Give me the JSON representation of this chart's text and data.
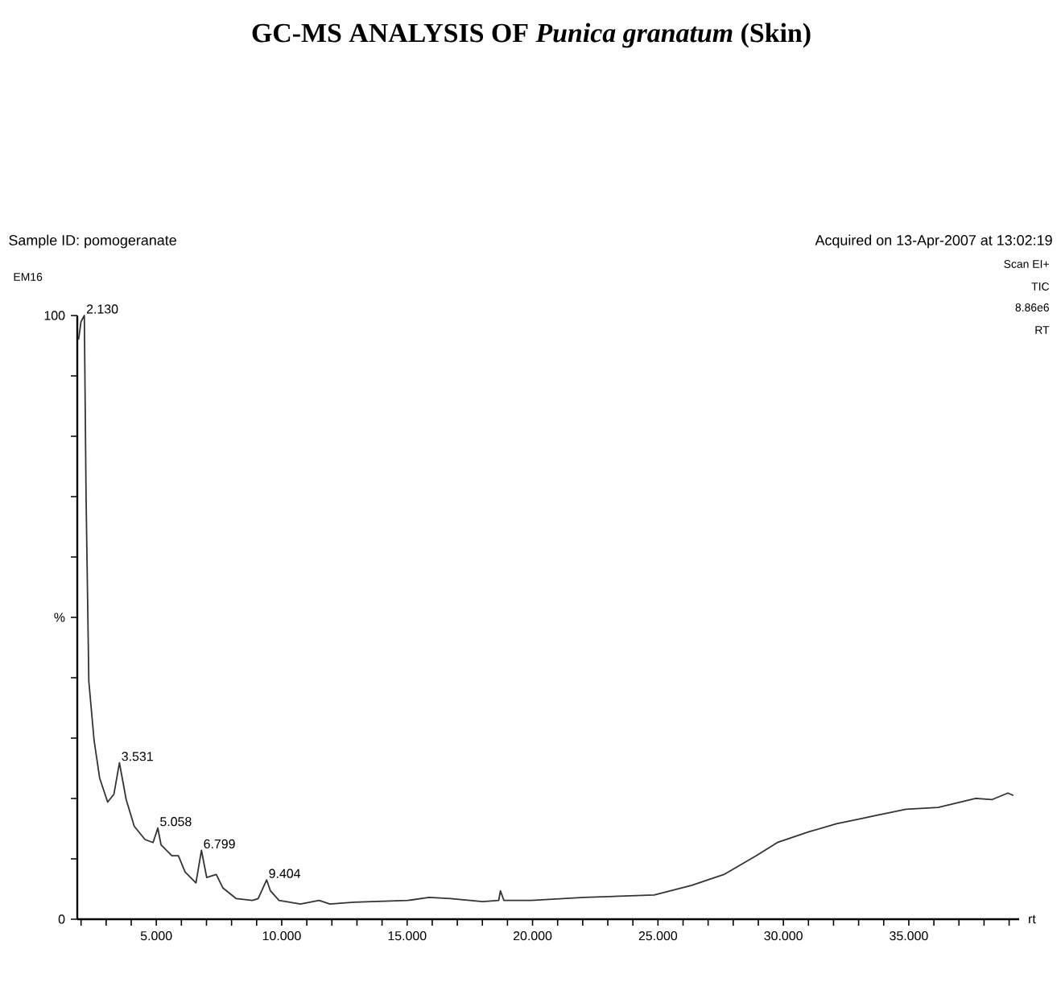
{
  "chart_data": {
    "type": "line",
    "title": "GC-MS ANALYSIS OF *Punica granatum* (Skin)",
    "xlabel": "rt",
    "annotations": [
      "Sample ID: pomogeranate",
      "Acquired on 13-Apr-2007 at 13:02:19",
      "EM16",
      "Scan EI+",
      "TIC",
      "8.86e6",
      "RT",
      {
        "text": "2.130",
        "x": 2.13,
        "y": 100
      },
      {
        "text": "3.531",
        "x": 3.53,
        "y": 25.9
      },
      {
        "text": "5.058",
        "x": 5.06,
        "y": 15.1
      },
      {
        "text": "6.799",
        "x": 6.8,
        "y": 11.4
      },
      {
        "text": "9.404",
        "x": 9.4,
        "y": 6.5
      }
    ],
    "xlim": [
      1.85,
      39.4
    ],
    "ylim": [
      0,
      100
    ],
    "xticks": [
      {
        "value": 2,
        "label": null
      },
      {
        "value": 3,
        "label": null
      },
      {
        "value": 4,
        "label": null
      },
      {
        "value": 5,
        "label": "5.000"
      },
      {
        "value": 6,
        "label": null
      },
      {
        "value": 7,
        "label": null
      },
      {
        "value": 8,
        "label": null
      },
      {
        "value": 9,
        "label": null
      },
      {
        "value": 10,
        "label": "10.000"
      },
      {
        "value": 11,
        "label": null
      },
      {
        "value": 12,
        "label": null
      },
      {
        "value": 13,
        "label": null
      },
      {
        "value": 14,
        "label": null
      },
      {
        "value": 15,
        "label": "15.000"
      },
      {
        "value": 16,
        "label": null
      },
      {
        "value": 17,
        "label": null
      },
      {
        "value": 18,
        "label": null
      },
      {
        "value": 19,
        "label": null
      },
      {
        "value": 20,
        "label": "20.000"
      },
      {
        "value": 21,
        "label": null
      },
      {
        "value": 22,
        "label": null
      },
      {
        "value": 23,
        "label": null
      },
      {
        "value": 24,
        "label": null
      },
      {
        "value": 25,
        "label": "25.000"
      },
      {
        "value": 26,
        "label": null
      },
      {
        "value": 27,
        "label": null
      },
      {
        "value": 28,
        "label": null
      },
      {
        "value": 29,
        "label": null
      },
      {
        "value": 30,
        "label": "30.000"
      },
      {
        "value": 31,
        "label": null
      },
      {
        "value": 32,
        "label": null
      },
      {
        "value": 33,
        "label": null
      },
      {
        "value": 34,
        "label": null
      },
      {
        "value": 35,
        "label": "35.000"
      },
      {
        "value": 36,
        "label": null
      },
      {
        "value": 37,
        "label": null
      },
      {
        "value": 38,
        "label": null
      },
      {
        "value": 39,
        "label": null
      }
    ],
    "yticks": [
      0,
      {
        "value": 10,
        "label": null
      },
      {
        "value": 20,
        "label": null
      },
      {
        "value": 30,
        "label": null
      },
      {
        "value": 40,
        "label": null
      },
      {
        "value": 50,
        "label": "%"
      },
      {
        "value": 60,
        "label": null
      },
      {
        "value": 70,
        "label": null
      },
      {
        "value": 80,
        "label": null
      },
      {
        "value": 90,
        "label": null
      },
      100
    ],
    "series": [
      {
        "color": "#333333",
        "x": [
          1.9,
          2.0,
          2.13,
          2.2,
          2.31,
          2.52,
          2.74,
          3.06,
          3.31,
          3.53,
          3.8,
          4.12,
          4.55,
          4.87,
          5.06,
          5.19,
          5.62,
          5.88,
          6.15,
          6.58,
          6.8,
          7.01,
          7.39,
          7.65,
          8.19,
          8.83,
          9.06,
          9.4,
          9.55,
          9.89,
          10.75,
          11.49,
          11.92,
          12.88,
          15.02,
          15.88,
          16.73,
          18.01,
          18.65,
          18.72,
          18.86,
          19.94,
          22.07,
          24.85,
          26.35,
          27.63,
          28.91,
          29.76,
          31.04,
          32.12,
          33.61,
          34.89,
          36.17,
          37.67,
          38.31,
          38.95,
          39.17
        ],
        "values": [
          96,
          99,
          100,
          70,
          39.4,
          29.6,
          23.4,
          19.4,
          20.7,
          25.9,
          19.8,
          15.4,
          13.2,
          12.7,
          15.1,
          12.3,
          10.5,
          10.5,
          7.8,
          6.0,
          11.4,
          6.9,
          7.4,
          5.2,
          3.4,
          3.1,
          3.4,
          6.5,
          4.7,
          3.1,
          2.5,
          3.1,
          2.5,
          2.8,
          3.1,
          3.6,
          3.4,
          2.9,
          3.1,
          4.7,
          3.1,
          3.1,
          3.6,
          4.0,
          5.6,
          7.4,
          10.5,
          12.7,
          14.5,
          15.8,
          17.1,
          18.2,
          18.5,
          20.0,
          19.8,
          20.9,
          20.5
        ]
      }
    ]
  }
}
